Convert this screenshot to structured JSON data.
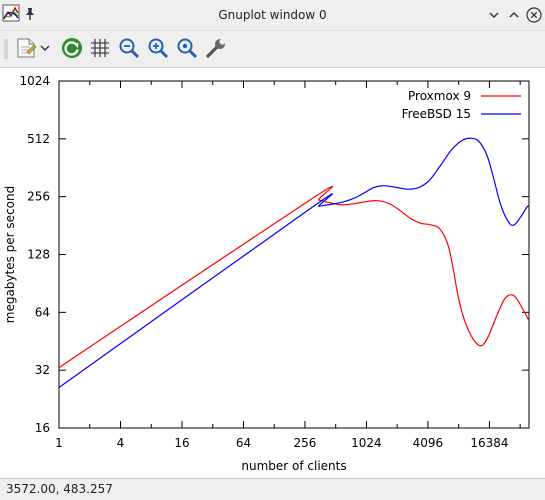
{
  "window": {
    "title": "Gnuplot window 0",
    "icons": [
      "gnuplot-app-icon",
      "pin-icon",
      "chevron-down-icon",
      "chevron-up-icon",
      "close-icon"
    ]
  },
  "toolbar": {
    "buttons": [
      {
        "name": "copy-to-clipboard-button",
        "icon": "clipboard-icon"
      },
      {
        "name": "menu-dropdown-button",
        "icon": "chevron-down-icon"
      },
      {
        "name": "replot-button",
        "icon": "refresh-icon"
      },
      {
        "name": "toggle-grid-button",
        "icon": "grid-icon"
      },
      {
        "name": "zoom-previous-button",
        "icon": "zoom-out-icon"
      },
      {
        "name": "zoom-next-button",
        "icon": "zoom-in-icon"
      },
      {
        "name": "autoscale-button",
        "icon": "zoom-fit-icon"
      },
      {
        "name": "settings-button",
        "icon": "wrench-icon"
      }
    ]
  },
  "status": {
    "coords": "3572.00,  483.257"
  },
  "chart_data": {
    "type": "line",
    "xlabel": "number of clients",
    "ylabel": "megabytes per second",
    "x_scale": "log2",
    "y_scale": "log2",
    "xlim": [
      1,
      40000
    ],
    "ylim": [
      16,
      1024
    ],
    "x_ticks": [
      "1",
      "4",
      "16",
      "64",
      "256",
      "1024",
      "4096",
      "16384"
    ],
    "y_ticks": [
      "16",
      "32",
      "64",
      "128",
      "256",
      "512",
      "1024"
    ],
    "legend_position": "top-right",
    "series": [
      {
        "name": "Proxmox 9",
        "color": "#ff0000",
        "x": [
          1,
          300,
          350,
          450,
          600,
          800,
          1000,
          1300,
          1700,
          2200,
          2800,
          3500,
          4300,
          5300,
          6400,
          7200,
          8000,
          9000,
          10500,
          12300,
          14000,
          16000,
          18000,
          20500,
          23000,
          26500,
          30000,
          35000,
          40000
        ],
        "y": [
          33,
          250,
          246,
          238,
          232,
          236,
          241,
          244,
          236,
          216,
          196,
          186,
          183,
          175,
          145,
          110,
          80,
          62,
          50,
          44,
          43,
          48,
          56,
          66,
          75,
          79,
          76,
          66,
          58
        ]
      },
      {
        "name": "FreeBSD 15",
        "color": "#0000ff",
        "x": [
          1,
          300,
          350,
          450,
          600,
          800,
          1000,
          1200,
          1500,
          2000,
          2600,
          3300,
          4200,
          5400,
          7000,
          9000,
          11000,
          13000,
          15500,
          18000,
          21000,
          25000,
          28500,
          33000,
          38000,
          40000
        ],
        "y": [
          26,
          225,
          228,
          233,
          240,
          253,
          270,
          285,
          292,
          286,
          280,
          285,
          310,
          370,
          450,
          505,
          515,
          495,
          420,
          320,
          235,
          190,
          182,
          200,
          225,
          230
        ]
      }
    ]
  }
}
